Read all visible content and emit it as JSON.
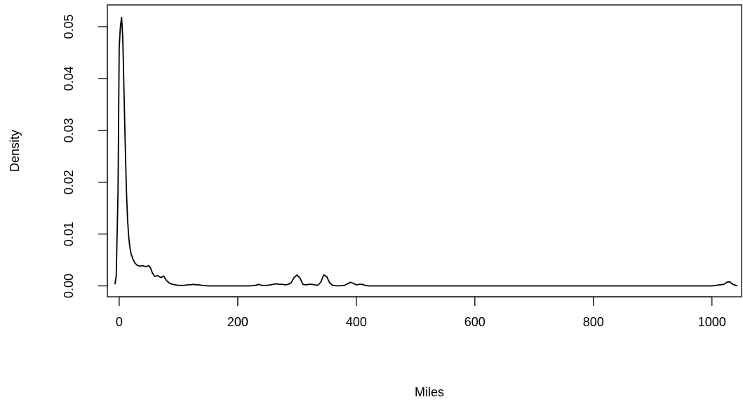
{
  "chart_data": {
    "type": "line",
    "title": "",
    "xlabel": "Miles",
    "ylabel": "Density",
    "xlim": [
      -20,
      1050
    ],
    "ylim": [
      -0.0021,
      0.0542
    ],
    "xticks": [
      0,
      200,
      400,
      600,
      800,
      1000
    ],
    "xtick_labels": [
      "0",
      "200",
      "400",
      "600",
      "800",
      "1000"
    ],
    "yticks": [
      0,
      0.01,
      0.02,
      0.03,
      0.04,
      0.05
    ],
    "ytick_labels": [
      "0.00",
      "0.01",
      "0.02",
      "0.03",
      "0.04",
      "0.05"
    ],
    "grid": false,
    "legend": "none",
    "series": [
      {
        "x": [
          -7,
          -5,
          -2,
          0,
          2,
          4,
          6,
          8,
          10,
          12,
          14,
          16,
          18,
          20,
          23,
          26,
          30,
          35,
          40,
          45,
          50,
          53,
          56,
          60,
          65,
          70,
          75,
          80,
          85,
          90,
          95,
          100,
          105,
          110,
          115,
          120,
          125,
          130,
          135,
          140,
          150,
          160,
          170,
          180,
          200,
          220,
          230,
          235,
          240,
          250,
          255,
          260,
          265,
          270,
          275,
          280,
          285,
          290,
          295,
          300,
          305,
          310,
          315,
          320,
          325,
          330,
          335,
          340,
          345,
          350,
          355,
          360,
          370,
          380,
          385,
          390,
          395,
          400,
          405,
          410,
          415,
          420,
          450,
          500,
          600,
          700,
          800,
          900,
          1000,
          1020,
          1025,
          1030,
          1035,
          1040,
          1043
        ],
        "y": [
          0.0003,
          0.002,
          0.018,
          0.046,
          0.05,
          0.0518,
          0.048,
          0.038,
          0.028,
          0.019,
          0.013,
          0.0095,
          0.0075,
          0.0062,
          0.0052,
          0.0045,
          0.004,
          0.0038,
          0.0039,
          0.0037,
          0.0039,
          0.0034,
          0.0025,
          0.0018,
          0.002,
          0.0016,
          0.0019,
          0.001,
          0.0005,
          0.0003,
          0.0002,
          0.0001,
          0.0001,
          0.0001,
          0.0002,
          0.0002,
          0.0003,
          0.0002,
          0.0002,
          0.0001,
          0.0,
          0.0,
          0.0,
          0.0,
          0.0,
          0.0,
          0.0001,
          0.0003,
          0.0001,
          0.0001,
          0.0002,
          0.0003,
          0.0004,
          0.0003,
          0.0003,
          0.0002,
          0.0003,
          0.0006,
          0.0016,
          0.0021,
          0.0015,
          0.0003,
          0.0002,
          0.0003,
          0.0003,
          0.0002,
          0.0001,
          0.0007,
          0.0021,
          0.0018,
          0.0006,
          0.0001,
          0.0,
          0.0001,
          0.0004,
          0.0007,
          0.0005,
          0.0002,
          0.0003,
          0.0003,
          0.0001,
          0.0,
          0.0,
          0.0,
          0.0,
          0.0,
          0.0,
          0.0,
          0.0,
          0.0003,
          0.0007,
          0.0008,
          0.0003,
          0.0001,
          0.0
        ]
      }
    ]
  }
}
